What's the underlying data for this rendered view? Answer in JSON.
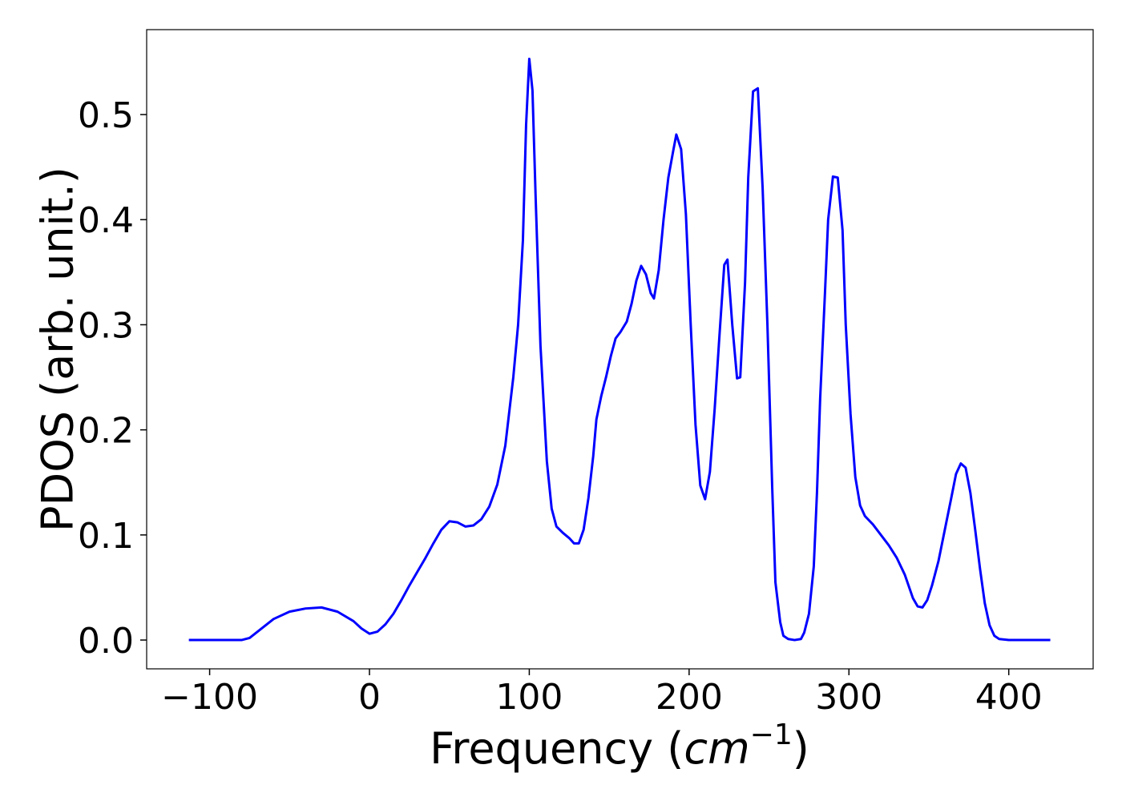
{
  "chart_data": {
    "type": "line",
    "xlabel": [
      "Frequency (",
      "cm",
      "−1",
      ")"
    ],
    "ylabel": "PDOS (arb. unit.)",
    "xlim": [
      -139.4,
      452.8
    ],
    "ylim": [
      -0.0274,
      0.5808
    ],
    "xticks": [
      {
        "value": -100,
        "label": "−100"
      },
      0,
      100,
      200,
      300,
      400
    ],
    "yticks": [
      {
        "value": 0,
        "label": "0.0"
      },
      0.1,
      0.2,
      0.3,
      0.4,
      0.5
    ],
    "series": [
      {
        "color": "#0000ff",
        "x": [
          -113,
          -80,
          -75,
          -70,
          -60,
          -50,
          -40,
          -30,
          -20,
          -10,
          -5,
          0,
          5,
          10,
          15,
          20,
          25,
          30,
          35,
          40,
          45,
          50,
          55,
          60,
          65,
          70,
          75,
          80,
          85,
          90,
          93,
          96,
          98,
          100,
          102,
          104,
          107,
          111,
          114,
          117,
          121,
          125,
          128,
          131,
          134,
          137,
          140,
          142,
          145,
          148,
          151,
          154,
          157,
          161,
          164,
          167,
          170,
          173,
          176,
          178,
          181,
          184,
          187,
          190,
          192,
          195,
          198,
          201,
          204,
          207,
          210,
          213,
          216,
          219,
          222,
          224,
          227,
          230,
          232,
          235,
          237,
          240,
          243,
          246,
          249,
          252,
          254,
          257,
          259,
          262,
          266,
          270,
          272,
          275,
          278,
          280,
          282,
          285,
          287,
          290,
          293,
          296,
          298,
          301,
          304,
          307,
          310,
          315,
          320,
          325,
          330,
          335,
          340,
          343,
          346,
          349,
          352,
          356,
          360,
          364,
          367,
          370,
          373,
          376,
          379,
          382,
          385,
          388,
          391,
          394,
          400,
          426
        ],
        "values": [
          0,
          0,
          0.002,
          0.008,
          0.02,
          0.027,
          0.03,
          0.031,
          0.027,
          0.018,
          0.011,
          0.006,
          0.008,
          0.015,
          0.025,
          0.038,
          0.052,
          0.065,
          0.078,
          0.092,
          0.105,
          0.113,
          0.112,
          0.108,
          0.109,
          0.115,
          0.127,
          0.148,
          0.185,
          0.25,
          0.3,
          0.38,
          0.49,
          0.553,
          0.523,
          0.42,
          0.28,
          0.17,
          0.125,
          0.108,
          0.102,
          0.097,
          0.092,
          0.092,
          0.105,
          0.135,
          0.175,
          0.21,
          0.232,
          0.25,
          0.27,
          0.287,
          0.293,
          0.303,
          0.32,
          0.342,
          0.356,
          0.348,
          0.33,
          0.325,
          0.352,
          0.4,
          0.44,
          0.465,
          0.481,
          0.467,
          0.405,
          0.3,
          0.205,
          0.147,
          0.134,
          0.16,
          0.22,
          0.29,
          0.357,
          0.362,
          0.3,
          0.249,
          0.25,
          0.34,
          0.44,
          0.522,
          0.525,
          0.43,
          0.3,
          0.145,
          0.055,
          0.017,
          0.004,
          0.001,
          0,
          0.001,
          0.007,
          0.025,
          0.07,
          0.14,
          0.23,
          0.33,
          0.4,
          0.441,
          0.44,
          0.39,
          0.3,
          0.215,
          0.155,
          0.128,
          0.118,
          0.11,
          0.1,
          0.09,
          0.078,
          0.062,
          0.04,
          0.032,
          0.031,
          0.038,
          0.052,
          0.075,
          0.105,
          0.135,
          0.158,
          0.168,
          0.164,
          0.14,
          0.105,
          0.068,
          0.035,
          0.014,
          0.004,
          0.001,
          0,
          0
        ]
      }
    ]
  }
}
